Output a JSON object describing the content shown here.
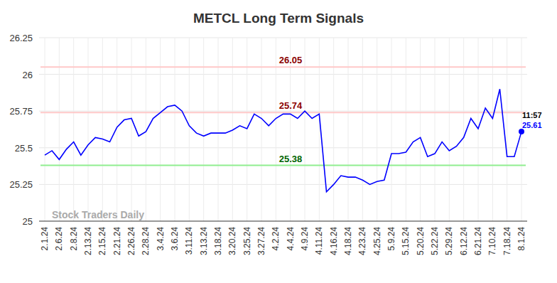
{
  "chart_data": {
    "type": "line",
    "title": "METCL Long Term Signals",
    "categories": [
      "2.1.24",
      null,
      "2.6.24",
      null,
      "2.8.24",
      null,
      "2.13.24",
      null,
      "2.15.24",
      null,
      "2.21.24",
      null,
      "2.26.24",
      null,
      "2.28.24",
      null,
      "3.4.24",
      null,
      "3.6.24",
      null,
      "3.11.24",
      null,
      "3.13.24",
      null,
      "3.18.24",
      null,
      "3.20.24",
      null,
      "3.25.24",
      null,
      "3.27.24",
      null,
      "4.2.24",
      null,
      "4.4.24",
      null,
      "4.9.24",
      null,
      "4.11.24",
      null,
      "4.16.24",
      null,
      "4.18.24",
      null,
      "4.23.24",
      null,
      "4.25.24",
      null,
      "5.9.24",
      null,
      "5.15.24",
      null,
      "5.20.24",
      null,
      "5.22.24",
      null,
      "5.29.24",
      null,
      "6.12.24",
      null,
      "6.21.24",
      null,
      "7.10.24",
      null,
      "7.18.24",
      null,
      "8.1.24"
    ],
    "values": [
      25.45,
      25.48,
      25.42,
      25.49,
      25.54,
      25.45,
      25.52,
      25.57,
      25.56,
      25.54,
      25.64,
      25.69,
      25.7,
      25.58,
      25.61,
      25.7,
      25.74,
      25.78,
      25.79,
      25.75,
      25.65,
      25.6,
      25.58,
      25.6,
      25.6,
      25.6,
      25.62,
      25.65,
      25.63,
      25.73,
      25.7,
      25.65,
      25.7,
      25.73,
      25.73,
      25.7,
      25.75,
      25.7,
      25.73,
      25.2,
      25.25,
      25.31,
      25.3,
      25.3,
      25.28,
      25.25,
      25.27,
      25.28,
      25.46,
      25.46,
      25.47,
      25.54,
      25.57,
      25.44,
      25.46,
      25.54,
      25.48,
      25.51,
      25.57,
      25.7,
      25.63,
      25.77,
      25.7,
      25.9,
      25.44,
      25.44,
      25.61
    ],
    "color": "#0000ff",
    "ylim": [
      25,
      26.25
    ],
    "yticks": [
      25,
      25.25,
      25.5,
      25.75,
      26,
      26.25
    ],
    "grid": true,
    "levels": [
      {
        "value": 26.05,
        "color": "#ffc8c8",
        "text_color": "#8b0000"
      },
      {
        "value": 25.74,
        "color": "#ffc8c8",
        "text_color": "#8b0000"
      },
      {
        "value": 25.38,
        "color": "#90ee90",
        "text_color": "#006400"
      }
    ],
    "annotations": [
      {
        "text": "11:57"
      }
    ],
    "watermark": "Stock Traders Daily"
  }
}
